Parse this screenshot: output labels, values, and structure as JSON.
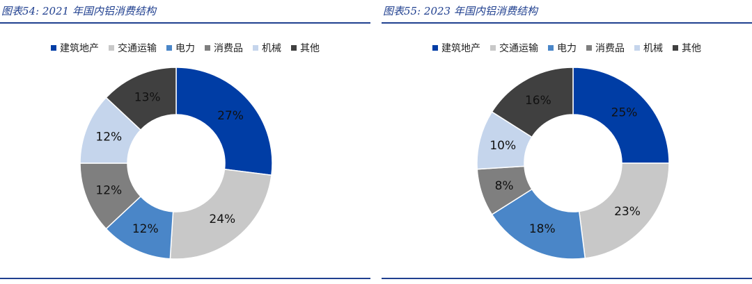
{
  "chart_data": [
    {
      "type": "pie",
      "donut": true,
      "title": "图表54: 2021 年国内铝消费结构",
      "legend_position": "top",
      "categories": [
        "建筑地产",
        "交通运输",
        "电力",
        "消费品",
        "机械",
        "其他"
      ],
      "values": [
        27,
        24,
        12,
        12,
        12,
        13
      ],
      "labels": [
        "27%",
        "24%",
        "12%",
        "12%",
        "12%",
        "13%"
      ]
    },
    {
      "type": "pie",
      "donut": true,
      "title": "图表55: 2023 年国内铝消费结构",
      "legend_position": "top",
      "categories": [
        "建筑地产",
        "交通运输",
        "电力",
        "消费品",
        "机械",
        "其他"
      ],
      "values": [
        25,
        23,
        18,
        8,
        10,
        16
      ],
      "labels": [
        "25%",
        "23%",
        "18%",
        "8%",
        "10%",
        "16%"
      ]
    }
  ],
  "colors": [
    "#003da5",
    "#c8c8c8",
    "#4a86c8",
    "#7f7f7f",
    "#c5d5ec",
    "#404040"
  ]
}
